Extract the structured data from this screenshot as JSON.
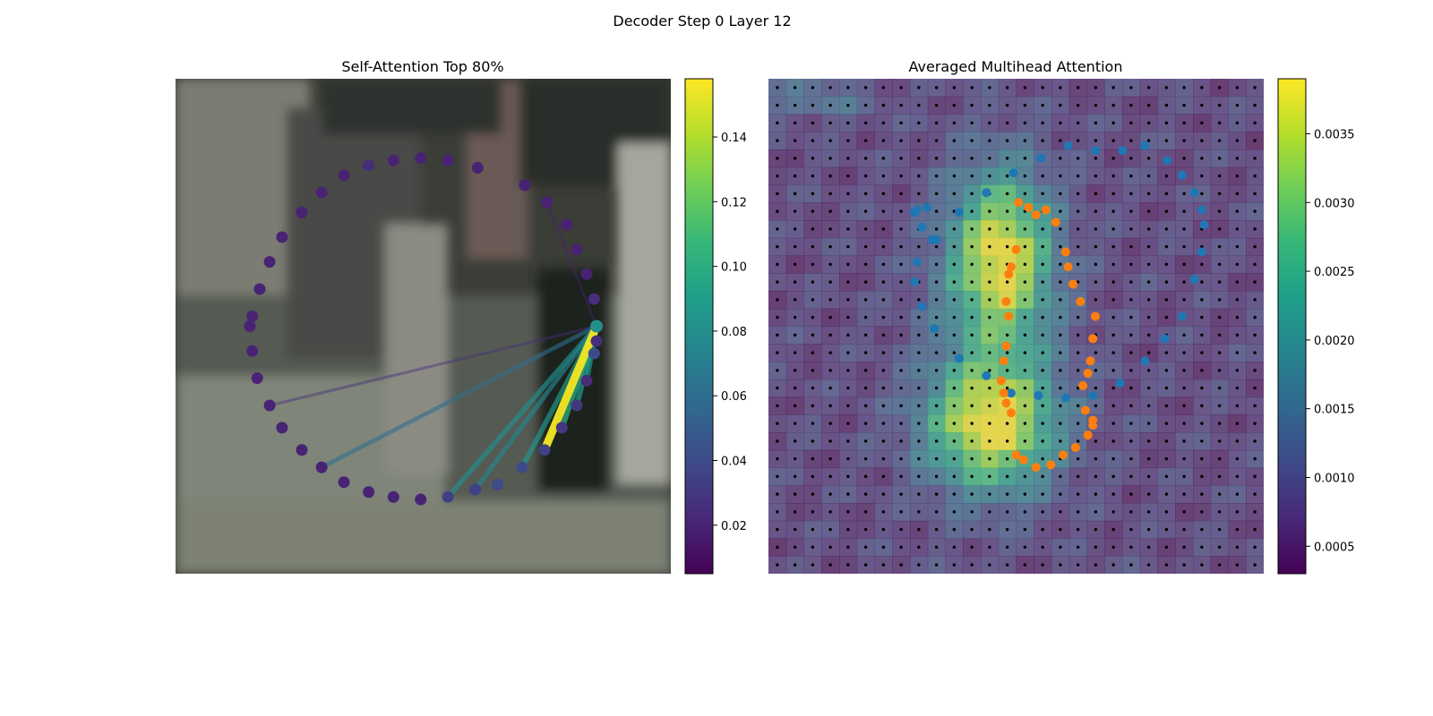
{
  "figure": {
    "suptitle": "Decoder Step 0 Layer 12"
  },
  "colormap": {
    "name": "viridis",
    "stops": [
      "#440154",
      "#482878",
      "#3e4989",
      "#31688e",
      "#26828e",
      "#1f9e89",
      "#35b779",
      "#6ece58",
      "#b5de2b",
      "#fde725"
    ]
  },
  "chart_data": [
    {
      "type": "scatter",
      "title": "Self-Attention Top 80%",
      "description_of_background": "blurred street photo",
      "points": {
        "count": 40,
        "shape": "circle",
        "x_range": [
          0,
          10
        ],
        "y_range": [
          0,
          10
        ],
        "coords": [
          [
            8.5,
            5.0
          ],
          [
            8.45,
            5.55
          ],
          [
            8.3,
            6.05
          ],
          [
            8.1,
            6.55
          ],
          [
            7.9,
            7.05
          ],
          [
            7.5,
            7.5
          ],
          [
            7.05,
            7.85
          ],
          [
            6.1,
            8.2
          ],
          [
            5.5,
            8.35
          ],
          [
            4.95,
            8.4
          ],
          [
            4.4,
            8.35
          ],
          [
            3.9,
            8.25
          ],
          [
            3.4,
            8.05
          ],
          [
            2.95,
            7.7
          ],
          [
            2.55,
            7.3
          ],
          [
            2.15,
            6.8
          ],
          [
            1.9,
            6.3
          ],
          [
            1.7,
            5.75
          ],
          [
            1.55,
            5.2
          ],
          [
            1.5,
            5.0
          ],
          [
            1.55,
            4.5
          ],
          [
            1.65,
            3.95
          ],
          [
            1.9,
            3.4
          ],
          [
            2.15,
            2.95
          ],
          [
            2.55,
            2.5
          ],
          [
            2.95,
            2.15
          ],
          [
            3.4,
            1.85
          ],
          [
            3.9,
            1.65
          ],
          [
            4.4,
            1.55
          ],
          [
            4.95,
            1.5
          ],
          [
            5.5,
            1.55
          ],
          [
            6.05,
            1.7
          ],
          [
            6.5,
            1.8
          ],
          [
            7.0,
            2.15
          ],
          [
            7.45,
            2.5
          ],
          [
            7.8,
            2.95
          ],
          [
            8.1,
            3.4
          ],
          [
            8.3,
            3.9
          ],
          [
            8.45,
            4.45
          ],
          [
            8.5,
            4.7
          ]
        ],
        "values": [
          0.08,
          0.025,
          0.02,
          0.02,
          0.02,
          0.02,
          0.02,
          0.02,
          0.02,
          0.02,
          0.02,
          0.025,
          0.02,
          0.02,
          0.02,
          0.02,
          0.02,
          0.02,
          0.02,
          0.02,
          0.02,
          0.02,
          0.02,
          0.02,
          0.02,
          0.02,
          0.02,
          0.02,
          0.02,
          0.02,
          0.035,
          0.035,
          0.04,
          0.04,
          0.035,
          0.03,
          0.03,
          0.025,
          0.04,
          0.025
        ]
      },
      "edges": {
        "source": 0,
        "links": [
          {
            "to": 34,
            "weight": 0.155
          },
          {
            "to": 35,
            "weight": 0.1
          },
          {
            "to": 36,
            "weight": 0.09
          },
          {
            "to": 37,
            "weight": 0.085
          },
          {
            "to": 33,
            "weight": 0.085
          },
          {
            "to": 30,
            "weight": 0.08
          },
          {
            "to": 31,
            "weight": 0.075
          },
          {
            "to": 25,
            "weight": 0.06
          },
          {
            "to": 22,
            "weight": 0.025
          },
          {
            "to": 5,
            "weight": 0.02
          }
        ]
      },
      "colorbar": {
        "range": [
          0.005,
          0.158
        ],
        "ticks": [
          0.02,
          0.04,
          0.06,
          0.08,
          0.1,
          0.12,
          0.14
        ],
        "tick_labels": [
          "0.02",
          "0.04",
          "0.06",
          "0.08",
          "0.10",
          "0.12",
          "0.14"
        ]
      }
    },
    {
      "type": "heatmap",
      "title": "Averaged Multihead Attention",
      "grid": {
        "rows": 28,
        "cols": 28,
        "reference_dots": "black"
      },
      "blobs": [
        {
          "cx": 0.47,
          "cy": 0.36,
          "sx": 0.07,
          "sy": 0.12,
          "value": 0.0037
        },
        {
          "cx": 0.45,
          "cy": 0.7,
          "sx": 0.09,
          "sy": 0.09,
          "value": 0.0038
        },
        {
          "cx": 0.45,
          "cy": 0.52,
          "sx": 0.1,
          "sy": 0.2,
          "value": 0.0012
        },
        {
          "cx": 0.1,
          "cy": 0.04,
          "sx": 0.08,
          "sy": 0.03,
          "value": 0.0014
        }
      ],
      "series": [
        {
          "name": "",
          "color": "#1f77b4",
          "x": [
            3.3,
            3.0,
            2.95,
            3.1,
            3.35,
            3.85,
            4.4,
            4.9,
            5.45,
            6.0,
            6.55,
            7.1,
            7.6,
            8.0,
            8.35,
            8.6,
            8.75,
            8.8,
            8.75,
            8.6,
            8.35,
            8.05,
            7.6,
            7.15,
            6.6,
            6.05,
            5.5,
            4.95,
            4.4,
            3.85,
            3.4,
            3.1,
            2.95,
            3.0,
            3.2
          ],
          "y": [
            6.75,
            6.3,
            5.9,
            5.4,
            4.95,
            4.35,
            4.0,
            3.65,
            3.6,
            3.55,
            3.6,
            3.85,
            4.3,
            4.75,
            5.2,
            5.95,
            6.5,
            7.05,
            7.35,
            7.7,
            8.05,
            8.35,
            8.65,
            8.55,
            8.55,
            8.65,
            8.4,
            8.1,
            7.7,
            7.3,
            6.75,
            7.0,
            7.3,
            7.35,
            7.4
          ]
        },
        {
          "name": "",
          "color": "#ff7f0e",
          "x": [
            5.0,
            5.15,
            5.4,
            5.7,
            5.95,
            6.2,
            6.45,
            6.55,
            6.55,
            6.4,
            6.35,
            6.45,
            6.5,
            6.55,
            6.6,
            6.3,
            6.15,
            6.05,
            6.0,
            5.8,
            5.6,
            5.4,
            5.25,
            5.05,
            5.0,
            4.9,
            4.85,
            4.8,
            4.85,
            4.8,
            4.75,
            4.7,
            4.75,
            4.8,
            4.9
          ],
          "y": [
            2.4,
            2.3,
            2.15,
            2.2,
            2.4,
            2.55,
            2.8,
            3.0,
            3.1,
            3.3,
            3.8,
            4.05,
            4.3,
            4.75,
            5.2,
            5.5,
            5.85,
            6.2,
            6.5,
            7.1,
            7.35,
            7.25,
            7.4,
            7.5,
            6.55,
            6.2,
            6.05,
            5.5,
            5.2,
            4.6,
            4.3,
            3.9,
            3.65,
            3.45,
            3.25
          ]
        }
      ],
      "colorbar": {
        "range": [
          0.0003,
          0.0039
        ],
        "ticks": [
          0.0005,
          0.001,
          0.0015,
          0.002,
          0.0025,
          0.003,
          0.0035
        ],
        "tick_labels": [
          "0.0005",
          "0.0010",
          "0.0015",
          "0.0020",
          "0.0025",
          "0.0030",
          "0.0035"
        ]
      }
    }
  ]
}
